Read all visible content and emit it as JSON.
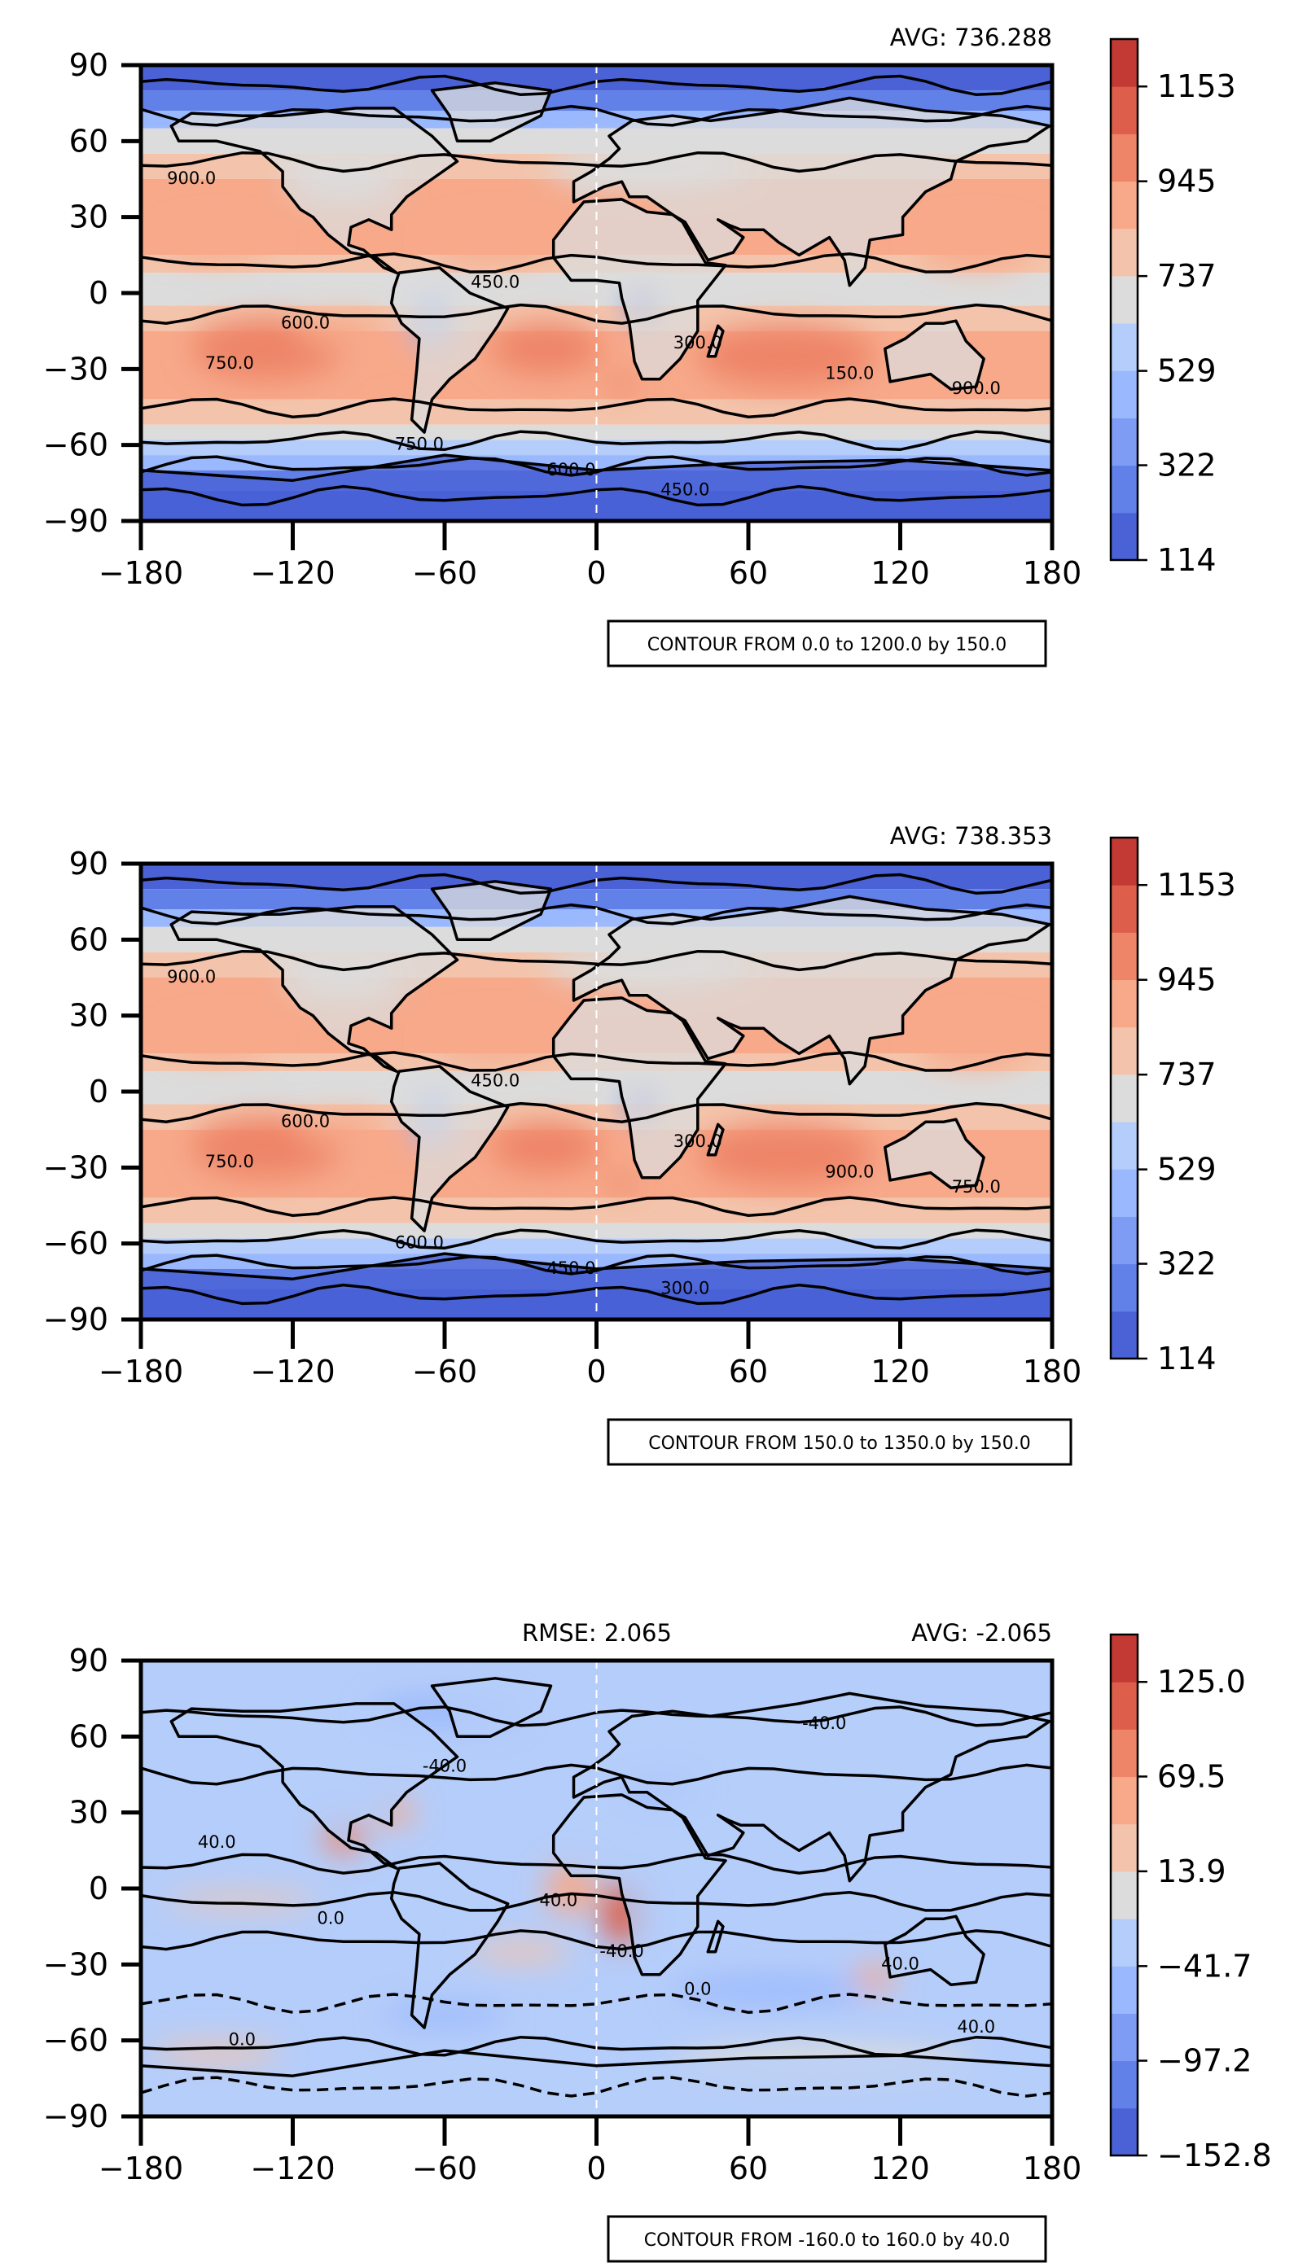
{
  "chart_data": [
    {
      "type": "heatmap",
      "map": "world",
      "avg_text": "AVG: 736.288",
      "rmse_text": "",
      "contour_text": "CONTOUR FROM 0.0 to 1200.0 by 150.0",
      "xlim": [
        -180,
        180
      ],
      "ylim": [
        -90,
        90
      ],
      "xticks": [
        -180,
        -120,
        -60,
        0,
        60,
        120,
        180
      ],
      "yticks": [
        -90,
        -60,
        -30,
        0,
        30,
        60,
        90
      ],
      "colorbar": {
        "range": [
          114,
          1257
        ],
        "tick_values": [
          114,
          322,
          529,
          737,
          945,
          1153
        ],
        "tick_labels": [
          "114",
          "322",
          "529",
          "737",
          "945",
          "1153"
        ],
        "colors": [
          "#4a62d6",
          "#6180e8",
          "#7f9cf5",
          "#9ab8fd",
          "#b5cdfa",
          "#dcdcdc",
          "#f3c4ab",
          "#f7a98a",
          "#ee8468",
          "#dd5e4a",
          "#c33a35"
        ]
      },
      "contour_labels": [
        "900.0",
        "750.0",
        "600.0",
        "450.0",
        "300.0",
        "150.0"
      ]
    },
    {
      "type": "heatmap",
      "map": "world",
      "avg_text": "AVG: 738.353",
      "rmse_text": "",
      "contour_text": "CONTOUR FROM 150.0 to 1350.0 by 150.0",
      "xlim": [
        -180,
        180
      ],
      "ylim": [
        -90,
        90
      ],
      "xticks": [
        -180,
        -120,
        -60,
        0,
        60,
        120,
        180
      ],
      "yticks": [
        -90,
        -60,
        -30,
        0,
        30,
        60,
        90
      ],
      "colorbar": {
        "range": [
          114,
          1257
        ],
        "tick_values": [
          114,
          322,
          529,
          737,
          945,
          1153
        ],
        "tick_labels": [
          "114",
          "322",
          "529",
          "737",
          "945",
          "1153"
        ],
        "colors": [
          "#4a62d6",
          "#6180e8",
          "#7f9cf5",
          "#9ab8fd",
          "#b5cdfa",
          "#dcdcdc",
          "#f3c4ab",
          "#f7a98a",
          "#ee8468",
          "#dd5e4a",
          "#c33a35"
        ]
      },
      "contour_labels": [
        "900.0",
        "750.0",
        "600.0",
        "450.0",
        "300.0"
      ]
    },
    {
      "type": "heatmap",
      "map": "world",
      "avg_text": "AVG: -2.065",
      "rmse_text": "RMSE: 2.065",
      "contour_text": "CONTOUR FROM -160.0 to 160.0 by 40.0",
      "xlim": [
        -180,
        180
      ],
      "ylim": [
        -90,
        90
      ],
      "xticks": [
        -180,
        -120,
        -60,
        0,
        60,
        120,
        180
      ],
      "yticks": [
        -90,
        -60,
        -30,
        0,
        30,
        60,
        90
      ],
      "colorbar": {
        "range": [
          -152.8,
          152.8
        ],
        "tick_values": [
          -152.8,
          -97.2,
          -41.7,
          13.9,
          69.5,
          125.0
        ],
        "tick_labels": [
          "−152.8",
          "−97.2",
          "−41.7",
          "13.9",
          "69.5",
          "125.0"
        ],
        "colors": [
          "#4a62d6",
          "#6180e8",
          "#7f9cf5",
          "#9ab8fd",
          "#b5cdfa",
          "#dcdcdc",
          "#f3c4ab",
          "#f7a98a",
          "#ee8468",
          "#dd5e4a",
          "#c33a35"
        ]
      },
      "contour_labels": [
        "40.0",
        "0.0",
        "-40.0"
      ]
    }
  ]
}
